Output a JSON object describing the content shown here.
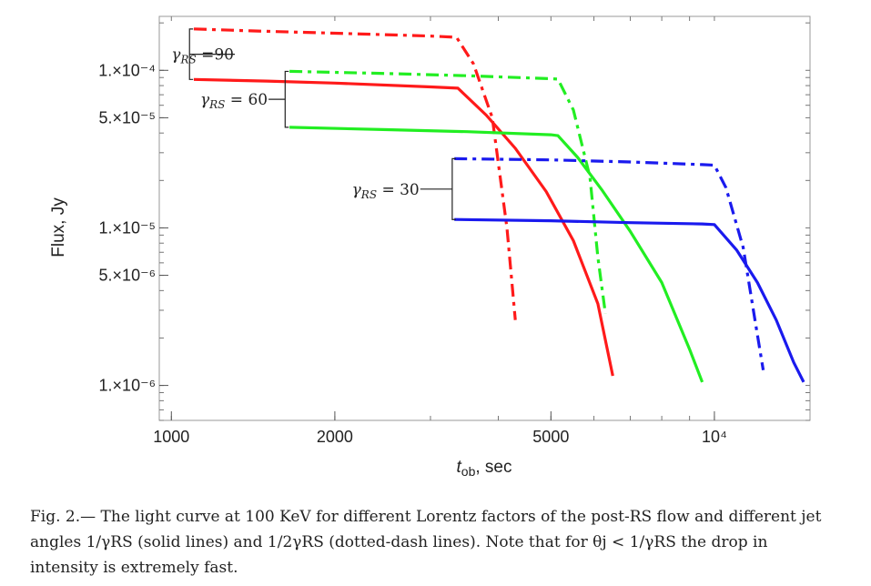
{
  "chart_data": {
    "type": "line",
    "xlabel": "t_ob, sec",
    "ylabel": "Flux, Jy",
    "xscale": "log",
    "yscale": "log",
    "xlim": [
      950,
      15000
    ],
    "ylim": [
      6e-07,
      0.00022
    ],
    "x_ticks": [
      {
        "value": 1000,
        "label": "1000"
      },
      {
        "value": 2000,
        "label": "2000"
      },
      {
        "value": 5000,
        "label": "5000"
      },
      {
        "value": 10000,
        "label": "10⁴"
      }
    ],
    "y_ticks": [
      {
        "value": 0.0001,
        "label": "1.×10⁻⁴"
      },
      {
        "value": 5e-05,
        "label": "5.×10⁻⁵"
      },
      {
        "value": 1e-05,
        "label": "1.×10⁻⁵"
      },
      {
        "value": 5e-06,
        "label": "5.×10⁻⁶"
      },
      {
        "value": 1e-06,
        "label": "1.×10⁻⁶"
      }
    ],
    "series": [
      {
        "style": "dotdash",
        "color": "#ff1a1a",
        "x": [
          1100,
          1400,
          2000,
          3000,
          3350,
          3600,
          3900,
          4150,
          4300
        ],
        "y": [
          0.000183,
          0.000178,
          0.000172,
          0.000165,
          0.000162,
          0.00011,
          5e-05,
          1e-05,
          2.6e-06
        ]
      },
      {
        "style": "solid",
        "color": "#ff1a1a",
        "x": [
          1100,
          1500,
          2000,
          3000,
          3370,
          3800,
          4300,
          4900,
          5500,
          6100,
          6500
        ],
        "y": [
          8.75e-05,
          8.55e-05,
          8.3e-05,
          7.85e-05,
          7.7e-05,
          5.2e-05,
          3.2e-05,
          1.7e-05,
          8.3e-06,
          3.3e-06,
          1.15e-06
        ]
      },
      {
        "style": "dotdash",
        "color": "#22ee22",
        "x": [
          1650,
          2500,
          3500,
          5000,
          5150,
          5500,
          5900,
          6100,
          6300
        ],
        "y": [
          9.85e-05,
          9.55e-05,
          9.25e-05,
          8.85e-05,
          8.8e-05,
          5.6e-05,
          2.1e-05,
          6.5e-06,
          2.85e-06
        ]
      },
      {
        "style": "solid",
        "color": "#22ee22",
        "x": [
          1650,
          2500,
          3500,
          5000,
          5150,
          5600,
          6200,
          7000,
          8000,
          9000,
          9500
        ],
        "y": [
          4.35e-05,
          4.2e-05,
          4.08e-05,
          3.9e-05,
          3.85e-05,
          2.8e-05,
          1.75e-05,
          9.5e-06,
          4.5e-06,
          1.7e-06,
          1.05e-06
        ]
      },
      {
        "style": "dotdash",
        "color": "#1a1aee",
        "x": [
          3320,
          5000,
          7000,
          9500,
          10000,
          10500,
          11300,
          11900,
          12300
        ],
        "y": [
          2.75e-05,
          2.7e-05,
          2.62e-05,
          2.52e-05,
          2.5e-05,
          1.8e-05,
          7.5e-06,
          2.5e-06,
          1.25e-06
        ]
      },
      {
        "style": "solid",
        "color": "#1a1aee",
        "x": [
          3320,
          5000,
          7000,
          9500,
          10000,
          11000,
          12000,
          13000,
          14000,
          14600
        ],
        "y": [
          1.13e-05,
          1.11e-05,
          1.08e-05,
          1.06e-05,
          1.05e-05,
          7.2e-06,
          4.5e-06,
          2.6e-06,
          1.4e-06,
          1.05e-06
        ]
      }
    ],
    "annotations": [
      {
        "label_main": "γ",
        "label_sub": "RS",
        "label_rest": " =90",
        "x": 1000,
        "y": 0.000122,
        "bracket_x": 1080,
        "bracket_top": 0.000183,
        "bracket_bottom": 8.75e-05
      },
      {
        "label_main": "γ",
        "label_sub": "RS",
        "label_rest": " = 60",
        "x": 1130,
        "y": 5.05e-05,
        "bracket_x": 1620,
        "bracket_top": 9.85e-05,
        "bracket_bottom": 4.35e-05
      },
      {
        "label_main": "γ",
        "label_sub": "RS",
        "label_rest": " = 30",
        "x": 2150,
        "y": 1.7e-05,
        "bracket_x": 3290,
        "bracket_top": 2.75e-05,
        "bracket_bottom": 1.13e-05
      }
    ]
  },
  "caption": "Fig. 2.— The light curve at 100 KeV for different Lorentz factors of the post-RS flow and different jet angles 1/γRS (solid lines) and 1/2γRS (dotted-dash lines). Note that for θj < 1/γRS the drop in intensity is extremely fast."
}
